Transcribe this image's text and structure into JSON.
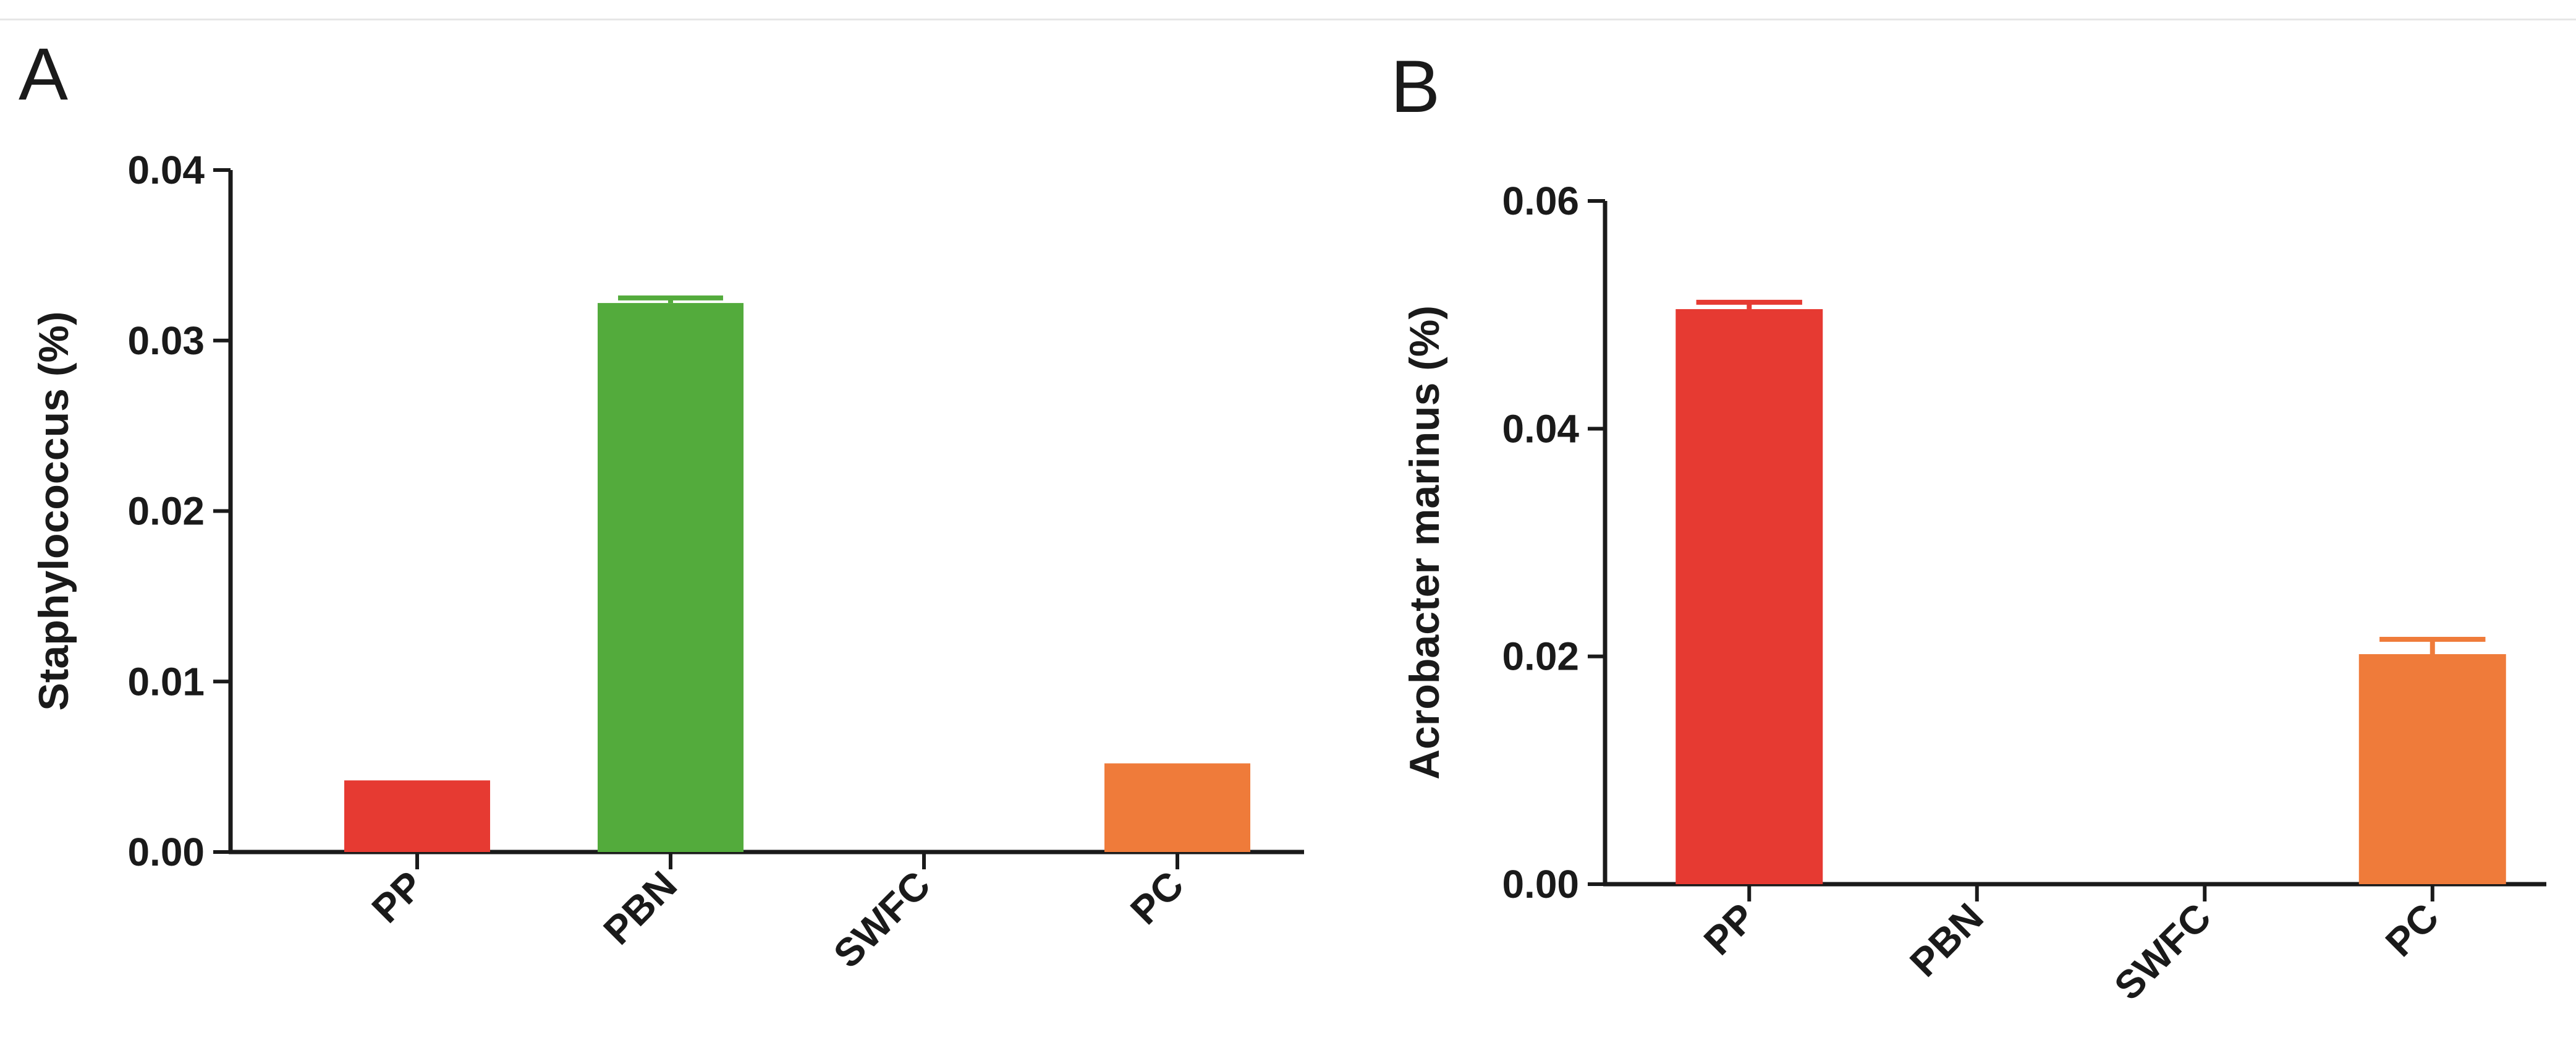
{
  "chart_data": [
    {
      "panel": "A",
      "type": "bar",
      "categories": [
        "PP",
        "PBN",
        "SWFC",
        "PC"
      ],
      "values": [
        0.0042,
        0.0322,
        0,
        0.0052
      ],
      "errors": [
        0,
        0.0003,
        0,
        0
      ],
      "colors": [
        "#e63a32",
        "#53ab3c",
        "#e63a32",
        "#ef7b3a"
      ],
      "ylabel": "Staphylococcus (%)",
      "xlabel": "",
      "ylim": [
        0,
        0.04
      ],
      "yticks": [
        "0.00",
        "0.01",
        "0.02",
        "0.03",
        "0.04"
      ],
      "grid": false
    },
    {
      "panel": "B",
      "type": "bar",
      "categories": [
        "PP",
        "PBN",
        "SWFC",
        "PC"
      ],
      "values": [
        0.0505,
        0,
        0,
        0.0202
      ],
      "errors": [
        0.0006,
        0,
        0,
        0.0013
      ],
      "colors": [
        "#e63a32",
        "#53ab3c",
        "#e63a32",
        "#ef7b3a"
      ],
      "ylabel": "Acrobacter marinus (%)",
      "xlabel": "",
      "ylim": [
        0,
        0.06
      ],
      "yticks": [
        "0.00",
        "0.02",
        "0.04",
        "0.06"
      ],
      "grid": false
    }
  ]
}
